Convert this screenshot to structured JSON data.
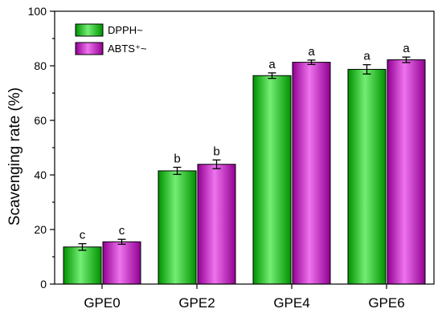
{
  "chart_data": {
    "type": "bar",
    "categories": [
      "GPE0",
      "GPE2",
      "GPE4",
      "GPE6"
    ],
    "series": [
      {
        "name": "DPPH~",
        "color": "#00e000",
        "values": [
          13.6,
          41.5,
          76.4,
          78.7
        ],
        "errors": [
          1.2,
          1.3,
          1.0,
          1.7
        ],
        "labels": [
          "c",
          "b",
          "a",
          "a"
        ]
      },
      {
        "name": "ABTS⁺~",
        "color": "#e000e0",
        "values": [
          15.5,
          43.9,
          81.3,
          82.2
        ],
        "errors": [
          0.9,
          1.6,
          0.8,
          1.0
        ],
        "labels": [
          "c",
          "b",
          "a",
          "a"
        ]
      }
    ],
    "ylabel": "Scavenging rate (%)",
    "xlabel": "",
    "ylim": [
      0,
      100
    ],
    "yticks": [
      0,
      20,
      40,
      60,
      80,
      100
    ],
    "grid": false,
    "legend": "top-left"
  }
}
